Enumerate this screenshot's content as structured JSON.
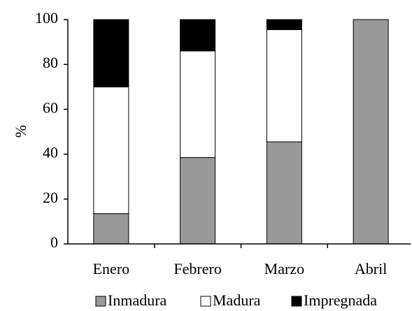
{
  "chart_data": {
    "type": "stacked-bar",
    "categories": [
      "Enero",
      "Febrero",
      "Marzo",
      "Abril"
    ],
    "y_label": "%",
    "series": [
      {
        "name": "Inmadura",
        "color": "#999999",
        "values": [
          13.5,
          38.5,
          45.5,
          100
        ]
      },
      {
        "name": "Madura",
        "color": "#ffffff",
        "values": [
          56.5,
          47.5,
          50,
          0
        ]
      },
      {
        "name": "Impregnada",
        "color": "#000000",
        "values": [
          30,
          14,
          4.5,
          0
        ]
      }
    ],
    "ylim": [
      0,
      100
    ],
    "yticks": [
      0,
      20,
      40,
      60,
      80,
      100
    ],
    "legend": "bottom"
  }
}
